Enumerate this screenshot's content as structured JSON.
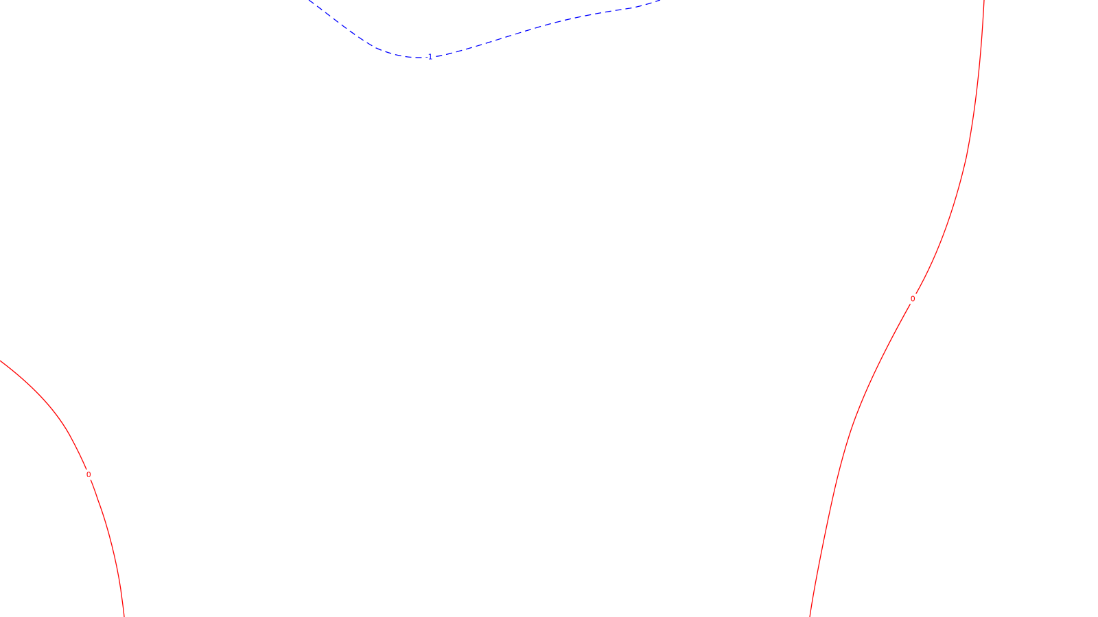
{
  "chart_data": {
    "type": "contour",
    "levels": [
      {
        "value": -1,
        "label": "-1",
        "color": "#0000ff",
        "line_style": "dashed",
        "label_count": 1
      },
      {
        "value": 0,
        "label": "0",
        "color": "#ff0000",
        "line_style": "solid",
        "label_count": 2
      }
    ]
  }
}
